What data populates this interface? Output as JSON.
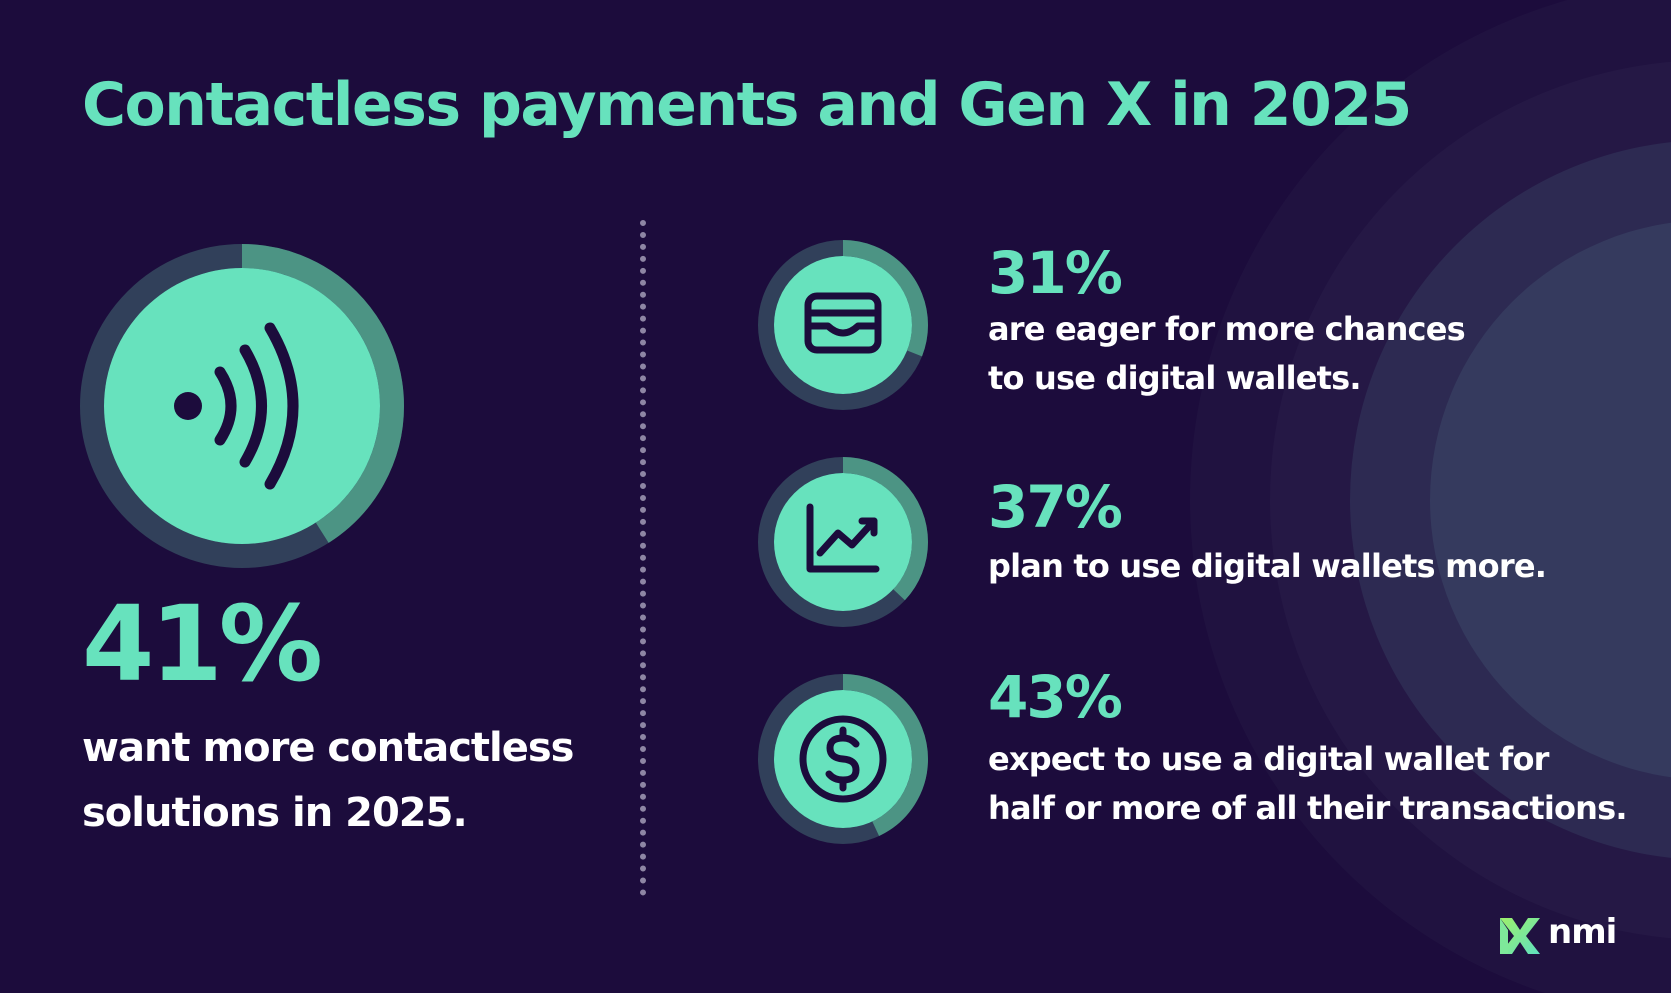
{
  "title": "Contactless payments and Gen X in 2025",
  "main_stat": {
    "value": "41%",
    "fraction": 0.41,
    "description": "want more contactless solutions in 2025.",
    "icon": "contactless-icon"
  },
  "stats": [
    {
      "value": "31%",
      "fraction": 0.31,
      "line1": "are eager for more chances",
      "line2": "to use digital wallets.",
      "icon": "wallet-icon"
    },
    {
      "value": "37%",
      "fraction": 0.37,
      "line1": "plan to use digital wallets more.",
      "line2": "",
      "icon": "trend-chart-icon"
    },
    {
      "value": "43%",
      "fraction": 0.43,
      "line1": "expect to use a digital wallet for",
      "line2": "half or more of all their transactions.",
      "icon": "dollar-coin-icon"
    }
  ],
  "brand": {
    "name": "nmi"
  },
  "colors": {
    "background": "#1c0c3c",
    "accent": "#67e2bd",
    "ring_track": "#31405a",
    "ring_fill": "#4c9484"
  }
}
